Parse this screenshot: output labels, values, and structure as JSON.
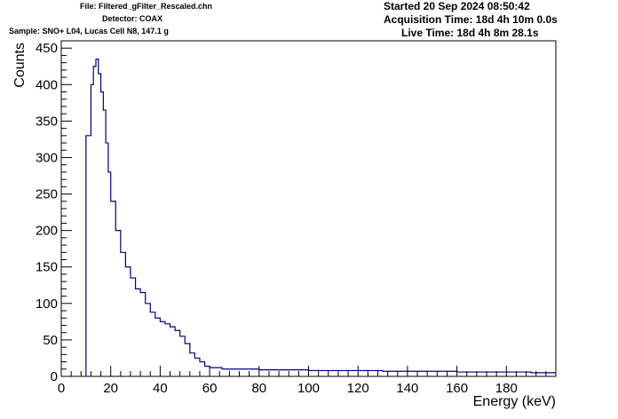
{
  "header": {
    "file": "File: Filtered_gFilter_Rescaled.chn",
    "detector": "Detector: COAX",
    "sample": "Sample: SNO+ L04, Lucas Cell N8, 147.1 g",
    "started": "Started 20 Sep 2024 08:50:42",
    "acquisition": "Acquisition Time: 18d 4h 10m 0.0s",
    "live": "Live Time: 18d 4h 8m 28.1s"
  },
  "colors": {
    "line": "#000080",
    "axis": "#000000",
    "background": "#ffffff"
  },
  "chart_data": {
    "type": "line",
    "style": "histogram-step",
    "xlabel": "Energy (keV)",
    "ylabel": "Counts",
    "xlim": [
      0,
      200
    ],
    "ylim": [
      0,
      460
    ],
    "x_ticks": [
      0,
      20,
      40,
      60,
      80,
      100,
      120,
      140,
      160,
      180
    ],
    "y_ticks": [
      0,
      50,
      100,
      150,
      200,
      250,
      300,
      350,
      400,
      450
    ],
    "grid": false,
    "series": [
      {
        "x": [
          10,
          12,
          13,
          14,
          15,
          16,
          17,
          18,
          19,
          20,
          22,
          24,
          26,
          28,
          30,
          32,
          34,
          36,
          38,
          40,
          42,
          44,
          46,
          48,
          50,
          52,
          54,
          56,
          58,
          60,
          65,
          70,
          75,
          80,
          90,
          100,
          110,
          120,
          130,
          140,
          150,
          160,
          170,
          180,
          190,
          200
        ],
        "values": [
          330,
          400,
          425,
          435,
          415,
          390,
          365,
          320,
          280,
          240,
          200,
          170,
          150,
          135,
          120,
          115,
          100,
          88,
          80,
          75,
          72,
          68,
          63,
          55,
          45,
          32,
          25,
          20,
          14,
          12,
          10,
          10,
          10,
          9,
          9,
          8,
          8,
          8,
          7,
          7,
          7,
          6,
          6,
          6,
          5,
          5
        ]
      }
    ]
  }
}
